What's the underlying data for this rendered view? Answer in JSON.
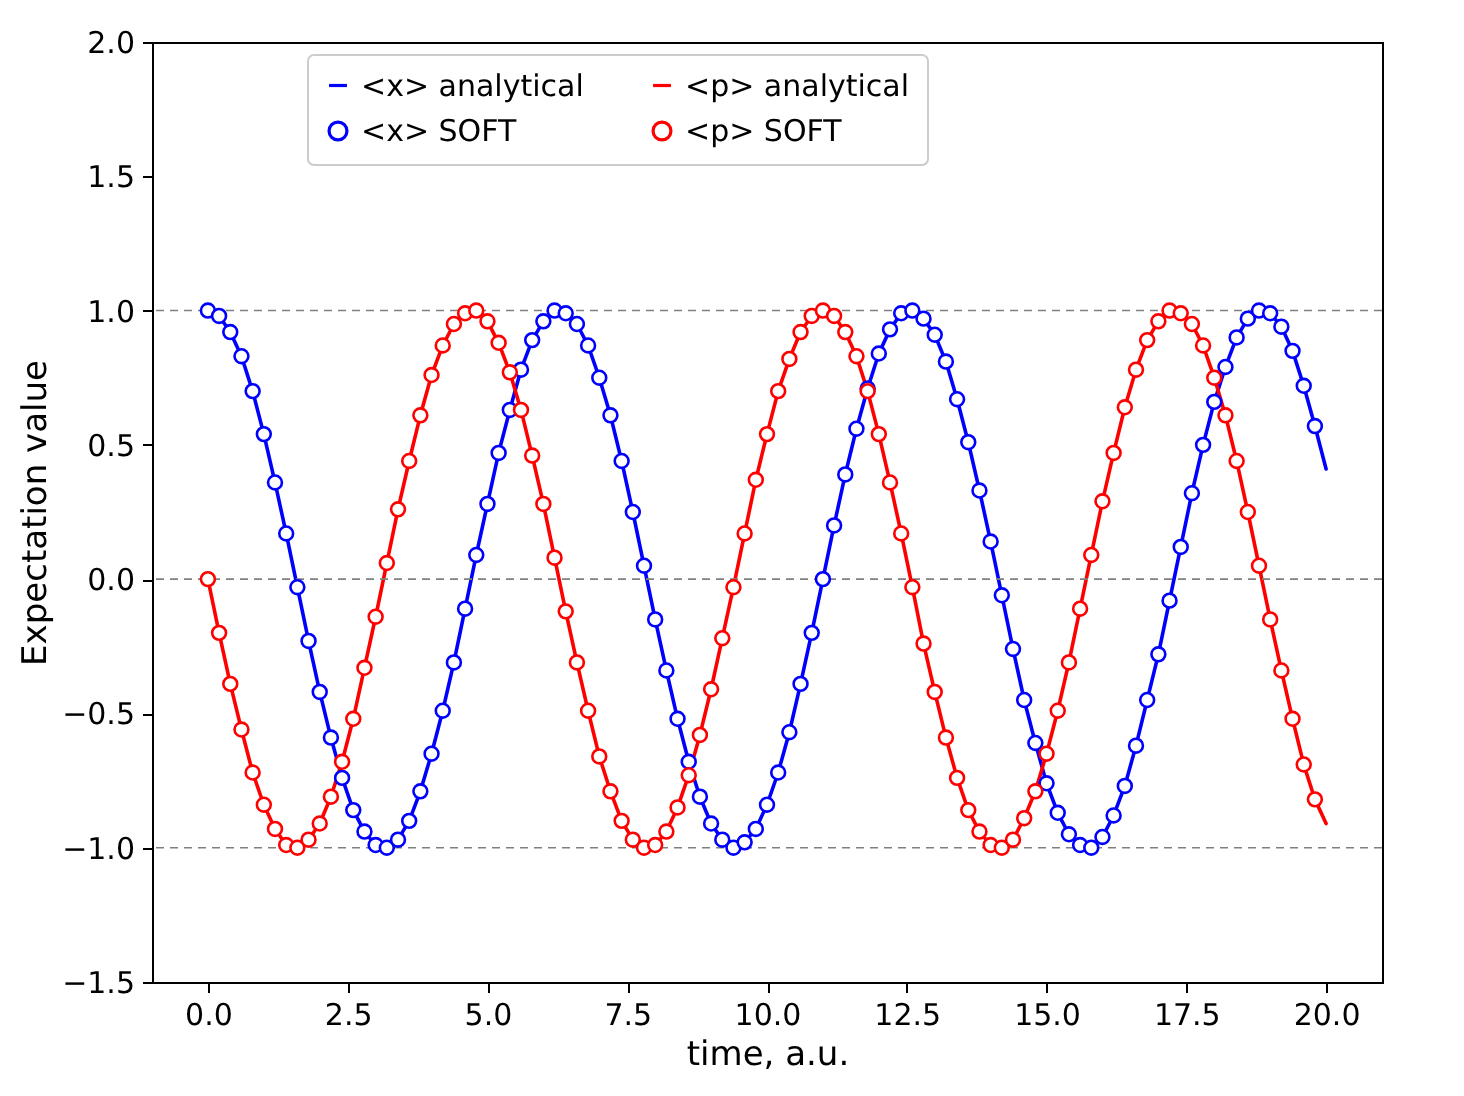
{
  "chart_data": {
    "type": "line",
    "xlabel": "time, a.u.",
    "ylabel": "Expectation value",
    "xlim": [
      -1,
      21
    ],
    "ylim": [
      -1.5,
      2.0
    ],
    "xticks": [
      {
        "value": 0,
        "label": "0.0"
      },
      {
        "value": 2.5,
        "label": "2.5"
      },
      {
        "value": 5,
        "label": "5.0"
      },
      {
        "value": 7.5,
        "label": "7.5"
      },
      {
        "value": 10,
        "label": "10.0"
      },
      {
        "value": 12.5,
        "label": "12.5"
      },
      {
        "value": 15,
        "label": "15.0"
      },
      {
        "value": 17.5,
        "label": "17.5"
      },
      {
        "value": 20,
        "label": "20.0"
      }
    ],
    "yticks": [
      {
        "value": -1.5,
        "label": "−1.5"
      },
      {
        "value": -1,
        "label": "−1.0"
      },
      {
        "value": -0.5,
        "label": "−0.5"
      },
      {
        "value": 0,
        "label": "0.0"
      },
      {
        "value": 0.5,
        "label": "0.5"
      },
      {
        "value": 1,
        "label": "1.0"
      },
      {
        "value": 1.5,
        "label": "1.5"
      },
      {
        "value": 2,
        "label": "2.0"
      }
    ],
    "grid": false,
    "legend": "top",
    "ref_lines": [
      {
        "axis": "y",
        "value": -1,
        "color": "#808080",
        "line_style": "dashed"
      },
      {
        "axis": "y",
        "value": 0,
        "color": "#808080",
        "line_style": "dashed"
      },
      {
        "axis": "y",
        "value": 1,
        "color": "#808080",
        "line_style": "dashed"
      }
    ],
    "x": [
      0,
      0.2,
      0.4,
      0.6,
      0.8,
      1.0,
      1.2,
      1.4,
      1.6,
      1.8,
      2.0,
      2.2,
      2.4,
      2.6,
      2.8,
      3.0,
      3.2,
      3.4,
      3.6,
      3.8,
      4.0,
      4.2,
      4.4,
      4.6,
      4.8,
      5.0,
      5.2,
      5.4,
      5.6,
      5.8,
      6.0,
      6.2,
      6.4,
      6.6,
      6.8,
      7.0,
      7.2,
      7.4,
      7.6,
      7.8,
      8.0,
      8.2,
      8.4,
      8.6,
      8.8,
      9.0,
      9.2,
      9.4,
      9.6,
      9.8,
      10.0,
      10.2,
      10.4,
      10.6,
      10.8,
      11.0,
      11.2,
      11.4,
      11.6,
      11.8,
      12.0,
      12.2,
      12.4,
      12.6,
      12.8,
      13.0,
      13.2,
      13.4,
      13.6,
      13.8,
      14.0,
      14.2,
      14.4,
      14.6,
      14.8,
      15.0,
      15.2,
      15.4,
      15.6,
      15.8,
      16.0,
      16.2,
      16.4,
      16.6,
      16.8,
      17.0,
      17.2,
      17.4,
      17.6,
      17.8,
      18.0,
      18.2,
      18.4,
      18.6,
      18.8,
      19.0,
      19.2,
      19.4,
      19.6,
      19.8,
      20.0
    ],
    "series": [
      {
        "name": "<x> analytical",
        "type": "line",
        "marker": "none",
        "color": "#0000ff",
        "values": [
          1.0,
          0.98,
          0.92,
          0.83,
          0.7,
          0.54,
          0.36,
          0.17,
          -0.03,
          -0.23,
          -0.42,
          -0.59,
          -0.74,
          -0.86,
          -0.94,
          -0.99,
          -1.0,
          -0.97,
          -0.9,
          -0.79,
          -0.65,
          -0.49,
          -0.31,
          -0.11,
          0.09,
          0.28,
          0.47,
          0.63,
          0.78,
          0.89,
          0.96,
          1.0,
          0.99,
          0.95,
          0.87,
          0.75,
          0.61,
          0.44,
          0.25,
          0.05,
          -0.15,
          -0.34,
          -0.52,
          -0.68,
          -0.81,
          -0.91,
          -0.97,
          -1.0,
          -0.98,
          -0.93,
          -0.84,
          -0.72,
          -0.57,
          -0.39,
          -0.2,
          0.0,
          0.2,
          0.39,
          0.56,
          0.71,
          0.84,
          0.93,
          0.99,
          1.0,
          0.97,
          0.91,
          0.81,
          0.67,
          0.51,
          0.33,
          0.14,
          -0.06,
          -0.26,
          -0.45,
          -0.61,
          -0.76,
          -0.87,
          -0.95,
          -0.99,
          -1.0,
          -0.96,
          -0.88,
          -0.77,
          -0.62,
          -0.45,
          -0.28,
          -0.08,
          0.12,
          0.32,
          0.5,
          0.66,
          0.79,
          0.9,
          0.97,
          1.0,
          0.99,
          0.94,
          0.85,
          0.72,
          0.57,
          0.41
        ]
      },
      {
        "name": "<p> analytical",
        "type": "line",
        "marker": "none",
        "color": "#ff0000",
        "values": [
          0.0,
          -0.2,
          -0.39,
          -0.56,
          -0.72,
          -0.84,
          -0.93,
          -0.99,
          -1.0,
          -0.97,
          -0.91,
          -0.81,
          -0.68,
          -0.52,
          -0.33,
          -0.14,
          0.06,
          0.26,
          0.44,
          0.61,
          0.76,
          0.87,
          0.95,
          0.99,
          1.0,
          0.96,
          0.88,
          0.77,
          0.63,
          0.46,
          0.28,
          0.08,
          -0.12,
          -0.31,
          -0.49,
          -0.66,
          -0.79,
          -0.9,
          -0.97,
          -1.0,
          -0.99,
          -0.94,
          -0.85,
          -0.73,
          -0.58,
          -0.41,
          -0.22,
          -0.03,
          0.17,
          0.37,
          0.54,
          0.7,
          0.82,
          0.92,
          0.98,
          1.0,
          0.98,
          0.92,
          0.83,
          0.7,
          0.54,
          0.36,
          0.17,
          -0.03,
          -0.24,
          -0.42,
          -0.59,
          -0.74,
          -0.86,
          -0.94,
          -0.99,
          -1.0,
          -0.97,
          -0.89,
          -0.79,
          -0.65,
          -0.49,
          -0.31,
          -0.11,
          0.09,
          0.29,
          0.47,
          0.64,
          0.78,
          0.89,
          0.96,
          1.0,
          0.99,
          0.95,
          0.87,
          0.75,
          0.61,
          0.44,
          0.25,
          0.05,
          -0.15,
          -0.34,
          -0.52,
          -0.69,
          -0.82,
          -0.91
        ]
      },
      {
        "name": "<x> SOFT",
        "type": "scatter",
        "marker": "circle",
        "color": "#0000ff",
        "values": [
          1.0,
          0.98,
          0.92,
          0.83,
          0.7,
          0.54,
          0.36,
          0.17,
          -0.03,
          -0.23,
          -0.42,
          -0.59,
          -0.74,
          -0.86,
          -0.94,
          -0.99,
          -1.0,
          -0.97,
          -0.9,
          -0.79,
          -0.65,
          -0.49,
          -0.31,
          -0.11,
          0.09,
          0.28,
          0.47,
          0.63,
          0.78,
          0.89,
          0.96,
          1.0,
          0.99,
          0.95,
          0.87,
          0.75,
          0.61,
          0.44,
          0.25,
          0.05,
          -0.15,
          -0.34,
          -0.52,
          -0.68,
          -0.81,
          -0.91,
          -0.97,
          -1.0,
          -0.98,
          -0.93,
          -0.84,
          -0.72,
          -0.57,
          -0.39,
          -0.2,
          0.0,
          0.2,
          0.39,
          0.56,
          0.71,
          0.84,
          0.93,
          0.99,
          1.0,
          0.97,
          0.91,
          0.81,
          0.67,
          0.51,
          0.33,
          0.14,
          -0.06,
          -0.26,
          -0.45,
          -0.61,
          -0.76,
          -0.87,
          -0.95,
          -0.99,
          -1.0,
          -0.96,
          -0.88,
          -0.77,
          -0.62,
          -0.45,
          -0.28,
          -0.08,
          0.12,
          0.32,
          0.5,
          0.66,
          0.79,
          0.9,
          0.97,
          1.0,
          0.99,
          0.94,
          0.85,
          0.72,
          0.57,
          null
        ]
      },
      {
        "name": "<p> SOFT",
        "type": "scatter",
        "marker": "circle",
        "color": "#ff0000",
        "values": [
          0.0,
          -0.2,
          -0.39,
          -0.56,
          -0.72,
          -0.84,
          -0.93,
          -0.99,
          -1.0,
          -0.97,
          -0.91,
          -0.81,
          -0.68,
          -0.52,
          -0.33,
          -0.14,
          0.06,
          0.26,
          0.44,
          0.61,
          0.76,
          0.87,
          0.95,
          0.99,
          1.0,
          0.96,
          0.88,
          0.77,
          0.63,
          0.46,
          0.28,
          0.08,
          -0.12,
          -0.31,
          -0.49,
          -0.66,
          -0.79,
          -0.9,
          -0.97,
          -1.0,
          -0.99,
          -0.94,
          -0.85,
          -0.73,
          -0.58,
          -0.41,
          -0.22,
          -0.03,
          0.17,
          0.37,
          0.54,
          0.7,
          0.82,
          0.92,
          0.98,
          1.0,
          0.98,
          0.92,
          0.83,
          0.7,
          0.54,
          0.36,
          0.17,
          -0.03,
          -0.24,
          -0.42,
          -0.59,
          -0.74,
          -0.86,
          -0.94,
          -0.99,
          -1.0,
          -0.97,
          -0.89,
          -0.79,
          -0.65,
          -0.49,
          -0.31,
          -0.11,
          0.09,
          0.29,
          0.47,
          0.64,
          0.78,
          0.89,
          0.96,
          1.0,
          0.99,
          0.95,
          0.87,
          0.75,
          0.61,
          0.44,
          0.25,
          0.05,
          -0.15,
          -0.34,
          -0.52,
          -0.69,
          -0.82,
          null
        ]
      }
    ]
  }
}
